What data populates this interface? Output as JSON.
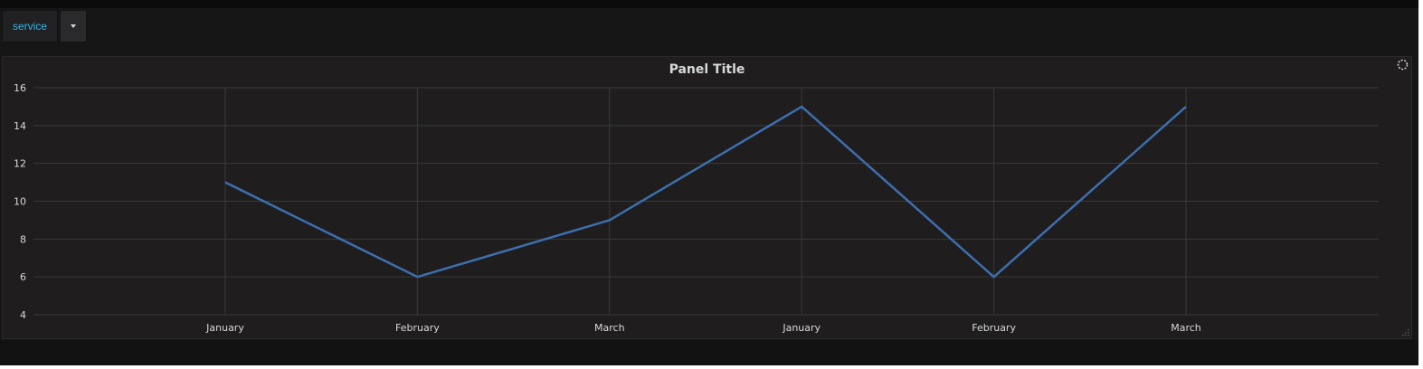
{
  "variables": {
    "service": {
      "label": "service"
    }
  },
  "panel": {
    "title": "Panel Title"
  },
  "icons": {
    "dropdown": "caret-down-icon",
    "loading": "loading-spinner-icon",
    "resize": "resize-handle-icon"
  },
  "colors": {
    "background": "#161616",
    "panel": "#1f1d1e",
    "variable_label": "#33b5e5",
    "series": "#3d6fae",
    "grid": "#3a3a3a",
    "text": "#d8d9da"
  },
  "chart_data": {
    "type": "line",
    "title": "Panel Title",
    "categories": [
      "January",
      "February",
      "March",
      "January",
      "February",
      "March"
    ],
    "series": [
      {
        "values": [
          11,
          6,
          9,
          15,
          6,
          15
        ]
      }
    ],
    "ylim": [
      4,
      16
    ],
    "yticks": [
      4,
      6,
      8,
      10,
      12,
      14,
      16
    ],
    "grid": true,
    "legend": "none",
    "xlabel": "",
    "ylabel": ""
  }
}
